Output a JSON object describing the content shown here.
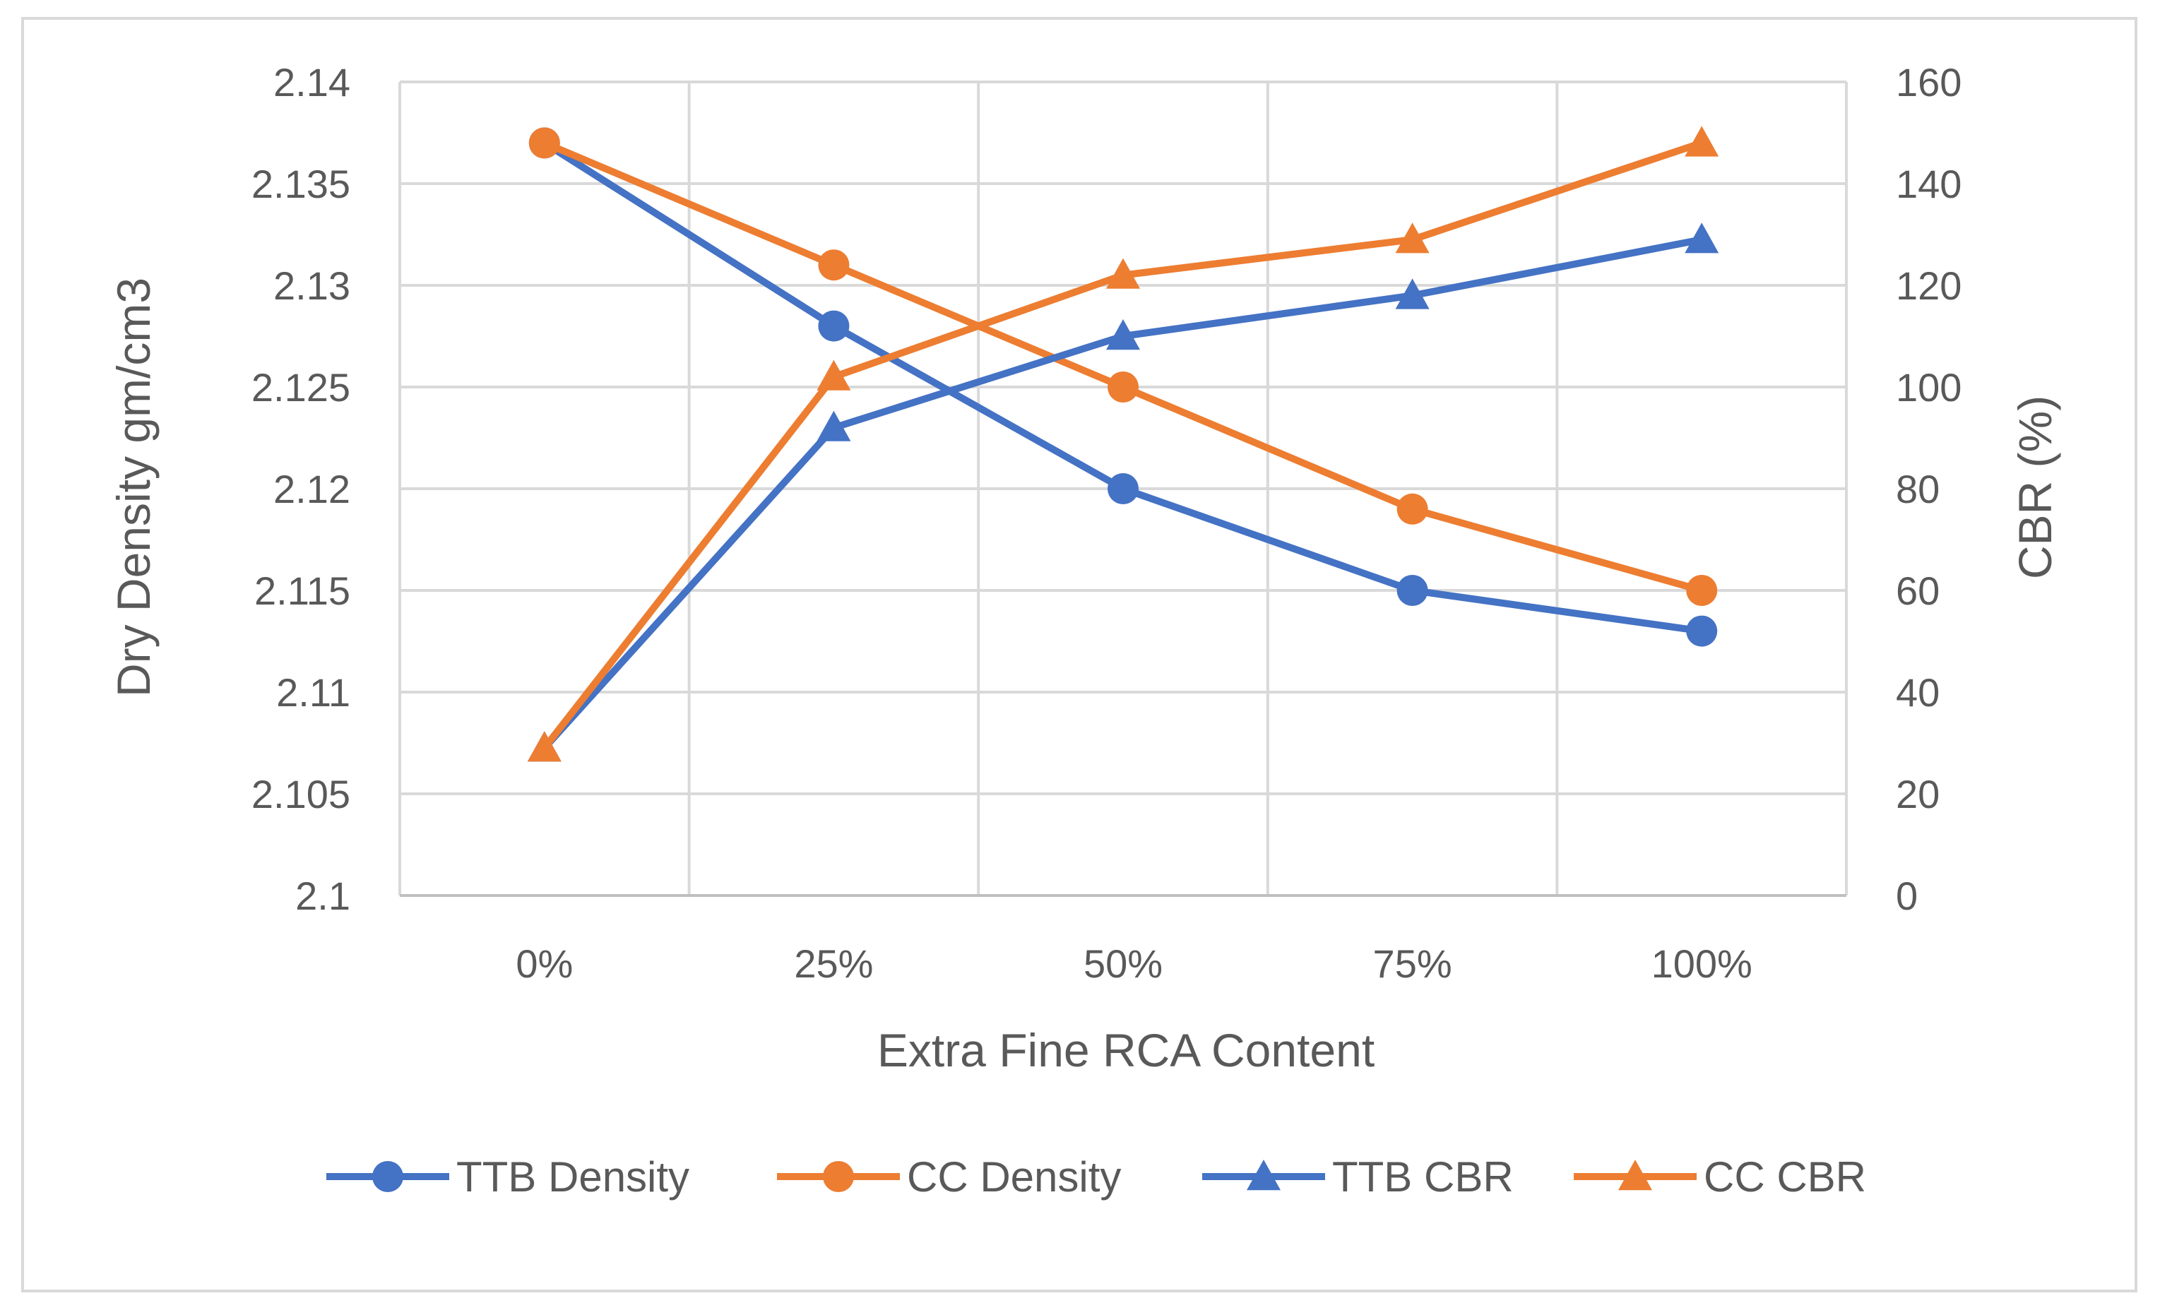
{
  "chart_data": {
    "type": "line",
    "title": "",
    "categories": [
      "0%",
      "25%",
      "50%",
      "75%",
      "100%"
    ],
    "xlabel": "Extra Fine RCA Content",
    "ylabel": "Dry Density gm/cm3",
    "y2label": "CBR (%)",
    "ylim": [
      2.1,
      2.14
    ],
    "yticks": [
      "2.1",
      "2.105",
      "2.11",
      "2.115",
      "2.12",
      "2.125",
      "2.13",
      "2.135",
      "2.14"
    ],
    "y2lim": [
      0,
      160
    ],
    "y2ticks": [
      "0",
      "20",
      "40",
      "60",
      "80",
      "100",
      "120",
      "140",
      "160"
    ],
    "grid": true,
    "legend_position": "bottom",
    "series": [
      {
        "name": "TTB Density",
        "axis": "left",
        "marker": "circle",
        "color": "#4472C4",
        "values": [
          2.137,
          2.128,
          2.12,
          2.115,
          2.113
        ]
      },
      {
        "name": "CC Density",
        "axis": "left",
        "marker": "circle",
        "color": "#ED7D31",
        "values": [
          2.137,
          2.131,
          2.125,
          2.119,
          2.115
        ]
      },
      {
        "name": "TTB CBR",
        "axis": "right",
        "marker": "triangle",
        "color": "#4472C4",
        "values": [
          29,
          92,
          110,
          118,
          129
        ]
      },
      {
        "name": "CC CBR",
        "axis": "right",
        "marker": "triangle",
        "color": "#ED7D31",
        "values": [
          29,
          102,
          122,
          129,
          148
        ]
      }
    ]
  }
}
